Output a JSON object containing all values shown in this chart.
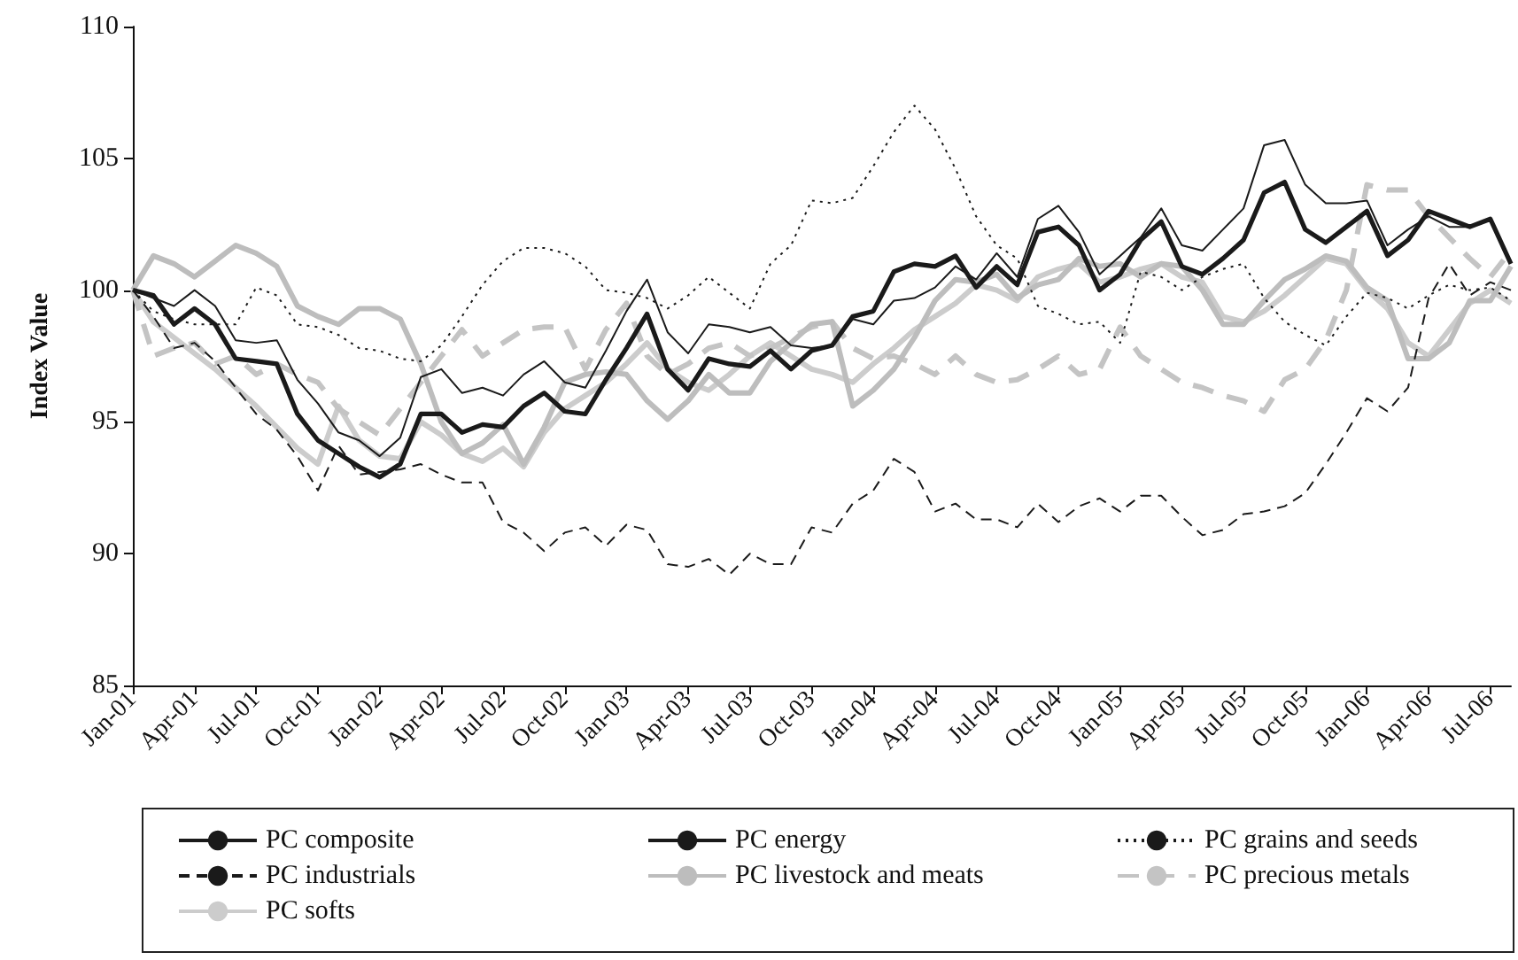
{
  "chart_data": {
    "type": "line",
    "ylabel": "Index Value",
    "categories": [
      "Jan-01",
      null,
      null,
      "Apr-01",
      null,
      null,
      "Jul-01",
      null,
      null,
      "Oct-01",
      null,
      null,
      "Jan-02",
      null,
      null,
      "Apr-02",
      null,
      null,
      "Jul-02",
      null,
      null,
      "Oct-02",
      null,
      null,
      "Jan-03",
      null,
      null,
      "Apr-03",
      null,
      null,
      "Jul-03",
      null,
      null,
      "Oct-03",
      null,
      null,
      "Jan-04",
      null,
      null,
      "Apr-04",
      null,
      null,
      "Jul-04",
      null,
      null,
      "Oct-04",
      null,
      null,
      "Jan-05",
      null,
      null,
      "Apr-05",
      null,
      null,
      "Jul-05",
      null,
      null,
      "Oct-05",
      null,
      null,
      "Jan-06",
      null,
      null,
      "Apr-06",
      null,
      null,
      "Jul-06",
      null
    ],
    "ylim": [
      85,
      110
    ],
    "yticks": [
      85,
      90,
      95,
      100,
      105,
      110
    ],
    "grid": false,
    "legend": "bottom",
    "marker": "none",
    "series": [
      {
        "name": "PC composite",
        "color": "#1a1a1a",
        "line_style": "solid",
        "values": [
          100,
          99.8,
          98.7,
          99.3,
          98.7,
          97.4,
          97.3,
          97.2,
          95.3,
          94.3,
          93.8,
          93.3,
          92.9,
          93.4,
          95.3,
          95.3,
          94.6,
          94.9,
          94.8,
          95.6,
          96.1,
          95.4,
          95.3,
          96.6,
          97.8,
          99.1,
          97.0,
          96.2,
          97.4,
          97.2,
          97.1,
          97.7,
          97.0,
          97.7,
          97.9,
          99.0,
          99.2,
          100.7,
          101.0,
          100.9,
          101.3,
          100.1,
          100.9,
          100.2,
          102.2,
          102.4,
          101.7,
          100.0,
          100.6,
          101.9,
          102.6,
          100.9,
          100.6,
          101.2,
          101.9,
          103.7,
          104.1,
          102.3,
          101.8,
          102.4,
          103.0,
          101.3,
          101.9,
          103.0,
          102.7,
          102.4,
          102.7,
          101.0
        ]
      },
      {
        "name": "PC energy",
        "color": "#1a1a1a",
        "line_style": "solid",
        "values": [
          100,
          99.7,
          99.4,
          100,
          99.4,
          98.1,
          98.0,
          98.1,
          96.6,
          95.7,
          94.6,
          94.3,
          93.7,
          94.4,
          96.7,
          97.0,
          96.1,
          96.3,
          96.0,
          96.8,
          97.3,
          96.5,
          96.3,
          97.7,
          99.2,
          100.4,
          98.4,
          97.6,
          98.7,
          98.6,
          98.4,
          98.6,
          97.9,
          97.8,
          97.9,
          98.9,
          98.7,
          99.6,
          99.7,
          100.1,
          100.9,
          100.4,
          101.4,
          100.5,
          102.7,
          103.2,
          102.2,
          100.6,
          101.3,
          102.0,
          103.1,
          101.7,
          101.5,
          102.3,
          103.1,
          105.5,
          105.7,
          104.0,
          103.3,
          103.3,
          103.4,
          101.7,
          102.3,
          102.8,
          102.4,
          102.4,
          102.7,
          101.1
        ]
      },
      {
        "name": "PC grains and seeds",
        "color": "#1a1a1a",
        "line_style": "dotted",
        "values": [
          100,
          99.2,
          98.9,
          98.7,
          98.7,
          98.7,
          100.1,
          99.8,
          98.7,
          98.6,
          98.3,
          97.8,
          97.7,
          97.4,
          97.3,
          97.9,
          99.0,
          100.2,
          101.1,
          101.6,
          101.6,
          101.4,
          100.9,
          100.0,
          99.9,
          99.7,
          99.3,
          99.8,
          100.5,
          99.9,
          99.3,
          101.0,
          101.7,
          103.4,
          103.3,
          103.5,
          104.7,
          106.0,
          107.0,
          106.1,
          104.6,
          102.8,
          101.7,
          101.2,
          99.4,
          99.1,
          98.7,
          98.8,
          98.0,
          100.7,
          100.5,
          100.0,
          100.5,
          100.8,
          101.0,
          99.7,
          98.8,
          98.3,
          97.9,
          99.0,
          99.9,
          99.7,
          99.3,
          99.8,
          100.2,
          100.0,
          100.1,
          99.6
        ]
      },
      {
        "name": "PC industrials",
        "color": "#1a1a1a",
        "line_style": "dashed",
        "values": [
          100,
          99.0,
          97.8,
          98.0,
          97.3,
          96.3,
          95.3,
          94.7,
          93.7,
          92.4,
          94.1,
          93.0,
          93.1,
          93.2,
          93.4,
          93.0,
          92.7,
          92.7,
          91.2,
          90.8,
          90.1,
          90.8,
          91.0,
          90.3,
          91.1,
          90.9,
          89.6,
          89.5,
          89.8,
          89.2,
          90.0,
          89.6,
          89.6,
          91.0,
          90.8,
          91.9,
          92.4,
          93.6,
          93.1,
          91.6,
          91.9,
          91.3,
          91.3,
          91.0,
          91.9,
          91.2,
          91.8,
          92.1,
          91.6,
          92.2,
          92.2,
          91.4,
          90.7,
          90.9,
          91.5,
          91.6,
          91.8,
          92.3,
          93.4,
          94.6,
          95.9,
          95.4,
          96.3,
          99.7,
          101.0,
          99.8,
          100.3,
          100.0
        ]
      },
      {
        "name": "PC livestock and meats",
        "color": "#bdbdbd",
        "line_style": "solid",
        "values": [
          100,
          101.3,
          101.0,
          100.5,
          101.1,
          101.7,
          101.4,
          100.9,
          99.4,
          99.0,
          98.7,
          99.3,
          99.3,
          98.9,
          97.2,
          95.0,
          93.8,
          94.2,
          94.9,
          93.4,
          94.8,
          96.5,
          96.8,
          96.9,
          96.8,
          95.8,
          95.1,
          95.8,
          96.8,
          96.1,
          96.1,
          97.3,
          98.0,
          98.7,
          98.8,
          95.6,
          96.2,
          97.0,
          98.2,
          99.6,
          100.4,
          100.3,
          100.6,
          99.7,
          100.2,
          100.4,
          101.2,
          100.9,
          101.0,
          100.5,
          101.0,
          100.9,
          100.0,
          98.7,
          98.7,
          99.6,
          100.4,
          100.8,
          101.3,
          101.1,
          100.1,
          99.6,
          97.4,
          97.4,
          98.0,
          99.6,
          99.6,
          100.9
        ]
      },
      {
        "name": "PC precious metals",
        "color": "#c4c4c4",
        "line_style": "dashed",
        "values": [
          100,
          97.5,
          97.8,
          98.0,
          97.2,
          97.5,
          96.8,
          97.2,
          96.8,
          96.5,
          95.5,
          95.0,
          94.5,
          95.5,
          96.5,
          97.5,
          98.5,
          97.5,
          98.0,
          98.5,
          98.6,
          98.6,
          97.0,
          98.5,
          99.5,
          97.5,
          96.8,
          97.2,
          97.8,
          98.0,
          97.5,
          97.8,
          98.2,
          98.6,
          98.8,
          97.8,
          97.4,
          97.5,
          97.2,
          96.8,
          97.5,
          96.8,
          96.5,
          96.6,
          97.0,
          97.5,
          96.8,
          97.0,
          98.6,
          97.5,
          97.0,
          96.5,
          96.3,
          96.0,
          95.8,
          95.4,
          96.6,
          97.0,
          98.1,
          100.0,
          104.0,
          103.8,
          103.8,
          102.8,
          102.0,
          101.2,
          100.5,
          101.5
        ]
      },
      {
        "name": "PC softs",
        "color": "#cccccc",
        "line_style": "solid",
        "values": [
          100,
          98.8,
          98.2,
          97.6,
          97.0,
          96.3,
          95.6,
          94.8,
          94.0,
          93.4,
          95.6,
          94.3,
          93.7,
          93.6,
          95.0,
          94.5,
          93.8,
          93.5,
          94.0,
          93.3,
          94.6,
          95.5,
          96.0,
          96.5,
          97.2,
          98.0,
          97.0,
          96.5,
          96.2,
          96.8,
          97.5,
          98.0,
          97.5,
          97.0,
          96.8,
          96.5,
          97.2,
          97.8,
          98.5,
          99.0,
          99.5,
          100.2,
          100.0,
          99.6,
          100.5,
          100.8,
          101.0,
          100.3,
          100.5,
          100.8,
          101.0,
          100.5,
          100.3,
          99.0,
          98.8,
          99.2,
          99.8,
          100.5,
          101.2,
          101.0,
          100.0,
          99.3,
          98.0,
          97.5,
          98.5,
          99.5,
          100.0,
          99.5
        ]
      }
    ]
  }
}
